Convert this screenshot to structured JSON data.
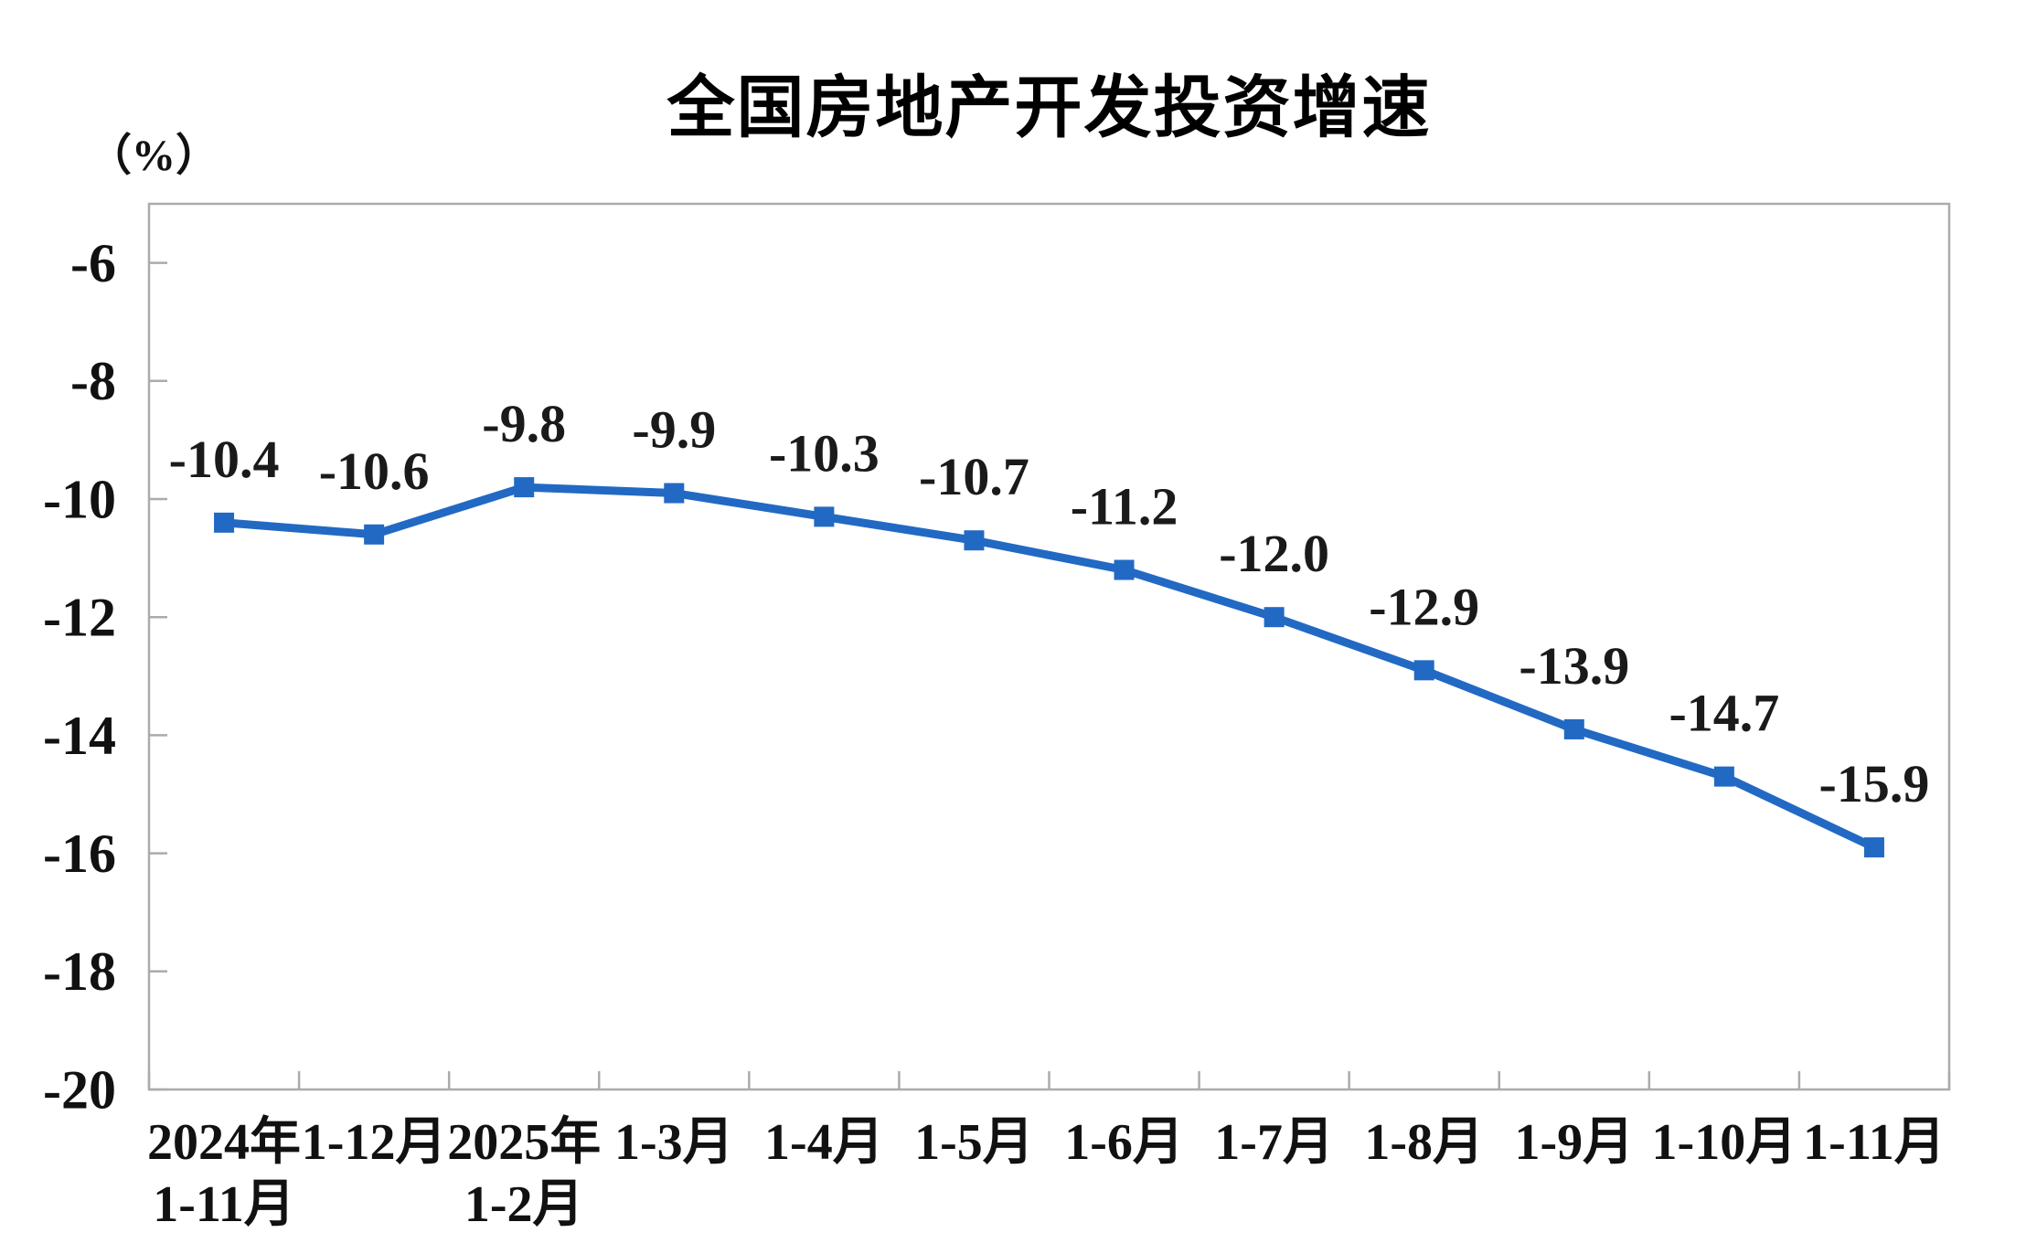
{
  "chart_data": {
    "type": "line",
    "title": "全国房地产开发投资增速",
    "unit_label": "（%）",
    "categories": [
      [
        "2024年",
        "1-11月"
      ],
      [
        "1-12月"
      ],
      [
        "2025年",
        "1-2月"
      ],
      [
        "1-3月"
      ],
      [
        "1-4月"
      ],
      [
        "1-5月"
      ],
      [
        "1-6月"
      ],
      [
        "1-7月"
      ],
      [
        "1-8月"
      ],
      [
        "1-9月"
      ],
      [
        "1-10月"
      ],
      [
        "1-11月"
      ]
    ],
    "values": [
      -10.4,
      -10.6,
      -9.8,
      -9.9,
      -10.3,
      -10.7,
      -11.2,
      -12.0,
      -12.9,
      -13.9,
      -14.7,
      -15.9
    ],
    "data_labels": [
      "-10.4",
      "-10.6",
      "-9.8",
      "-9.9",
      "-10.3",
      "-10.7",
      "-11.2",
      "-12.0",
      "-12.9",
      "-13.9",
      "-14.7",
      "-15.9"
    ],
    "xlabel": "",
    "ylabel": "（%）",
    "ylim": [
      -20,
      -5
    ],
    "yticks": [
      -6,
      -8,
      -10,
      -12,
      -14,
      -16,
      -18,
      -20
    ],
    "ytick_labels": [
      "-6",
      "-8",
      "-10",
      "-12",
      "-14",
      "-16",
      "-18",
      "-20"
    ],
    "grid": false,
    "legend_position": "none",
    "marker_shape": "square",
    "colors": {
      "line": "#2269C4",
      "marker": "#2269C4",
      "axis": "#ABABAB",
      "tick_label": "#111111",
      "data_label": "#1a1a1a",
      "title": "#000000",
      "background": "#ffffff"
    }
  }
}
